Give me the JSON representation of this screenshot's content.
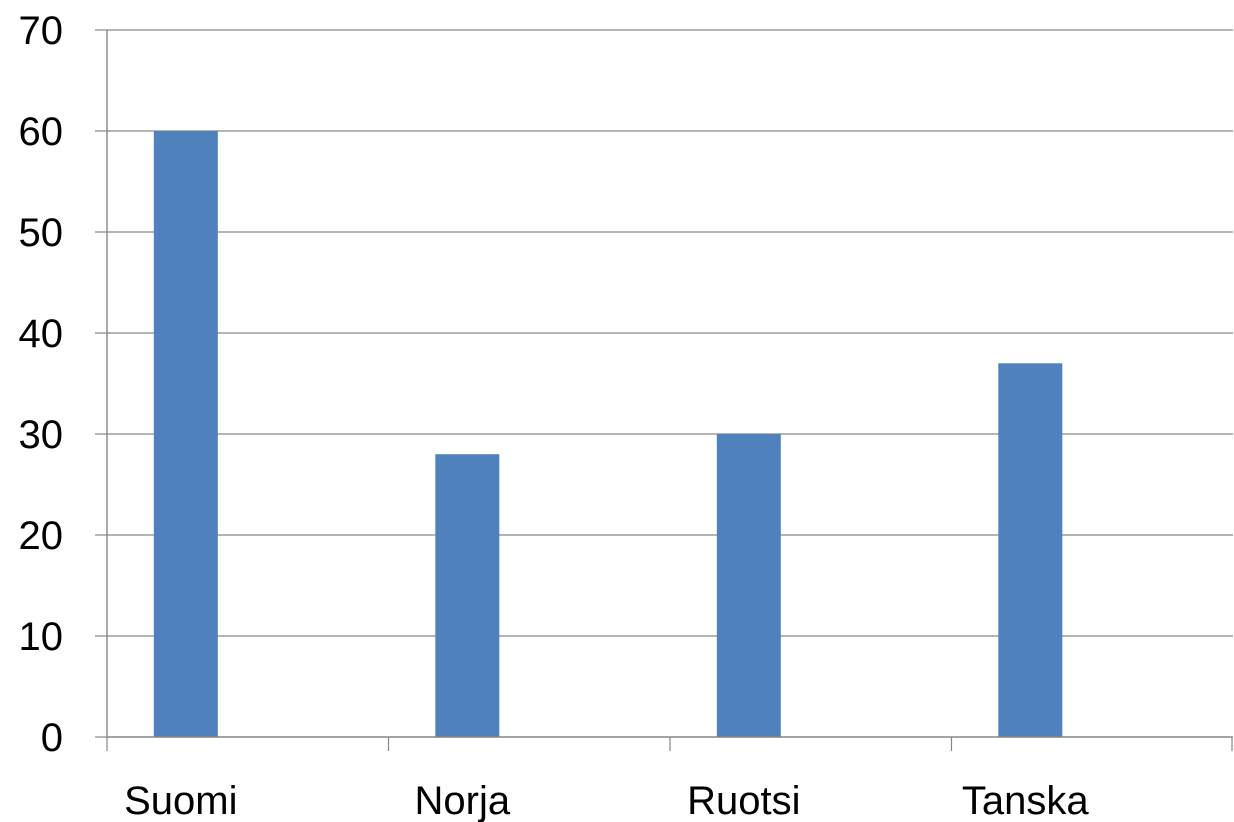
{
  "chart_data": {
    "type": "bar",
    "categories": [
      "Suomi",
      "Norja",
      "Ruotsi",
      "Tanska"
    ],
    "series": [
      {
        "values": [
          60,
          28,
          30,
          37
        ],
        "color": "#4F81BD"
      }
    ],
    "ylim": [
      0,
      70
    ],
    "yticks": [
      0,
      10,
      20,
      30,
      40,
      50,
      60,
      70
    ],
    "grid": true,
    "legend": "none",
    "title": "",
    "xlabel": "",
    "ylabel": ""
  }
}
